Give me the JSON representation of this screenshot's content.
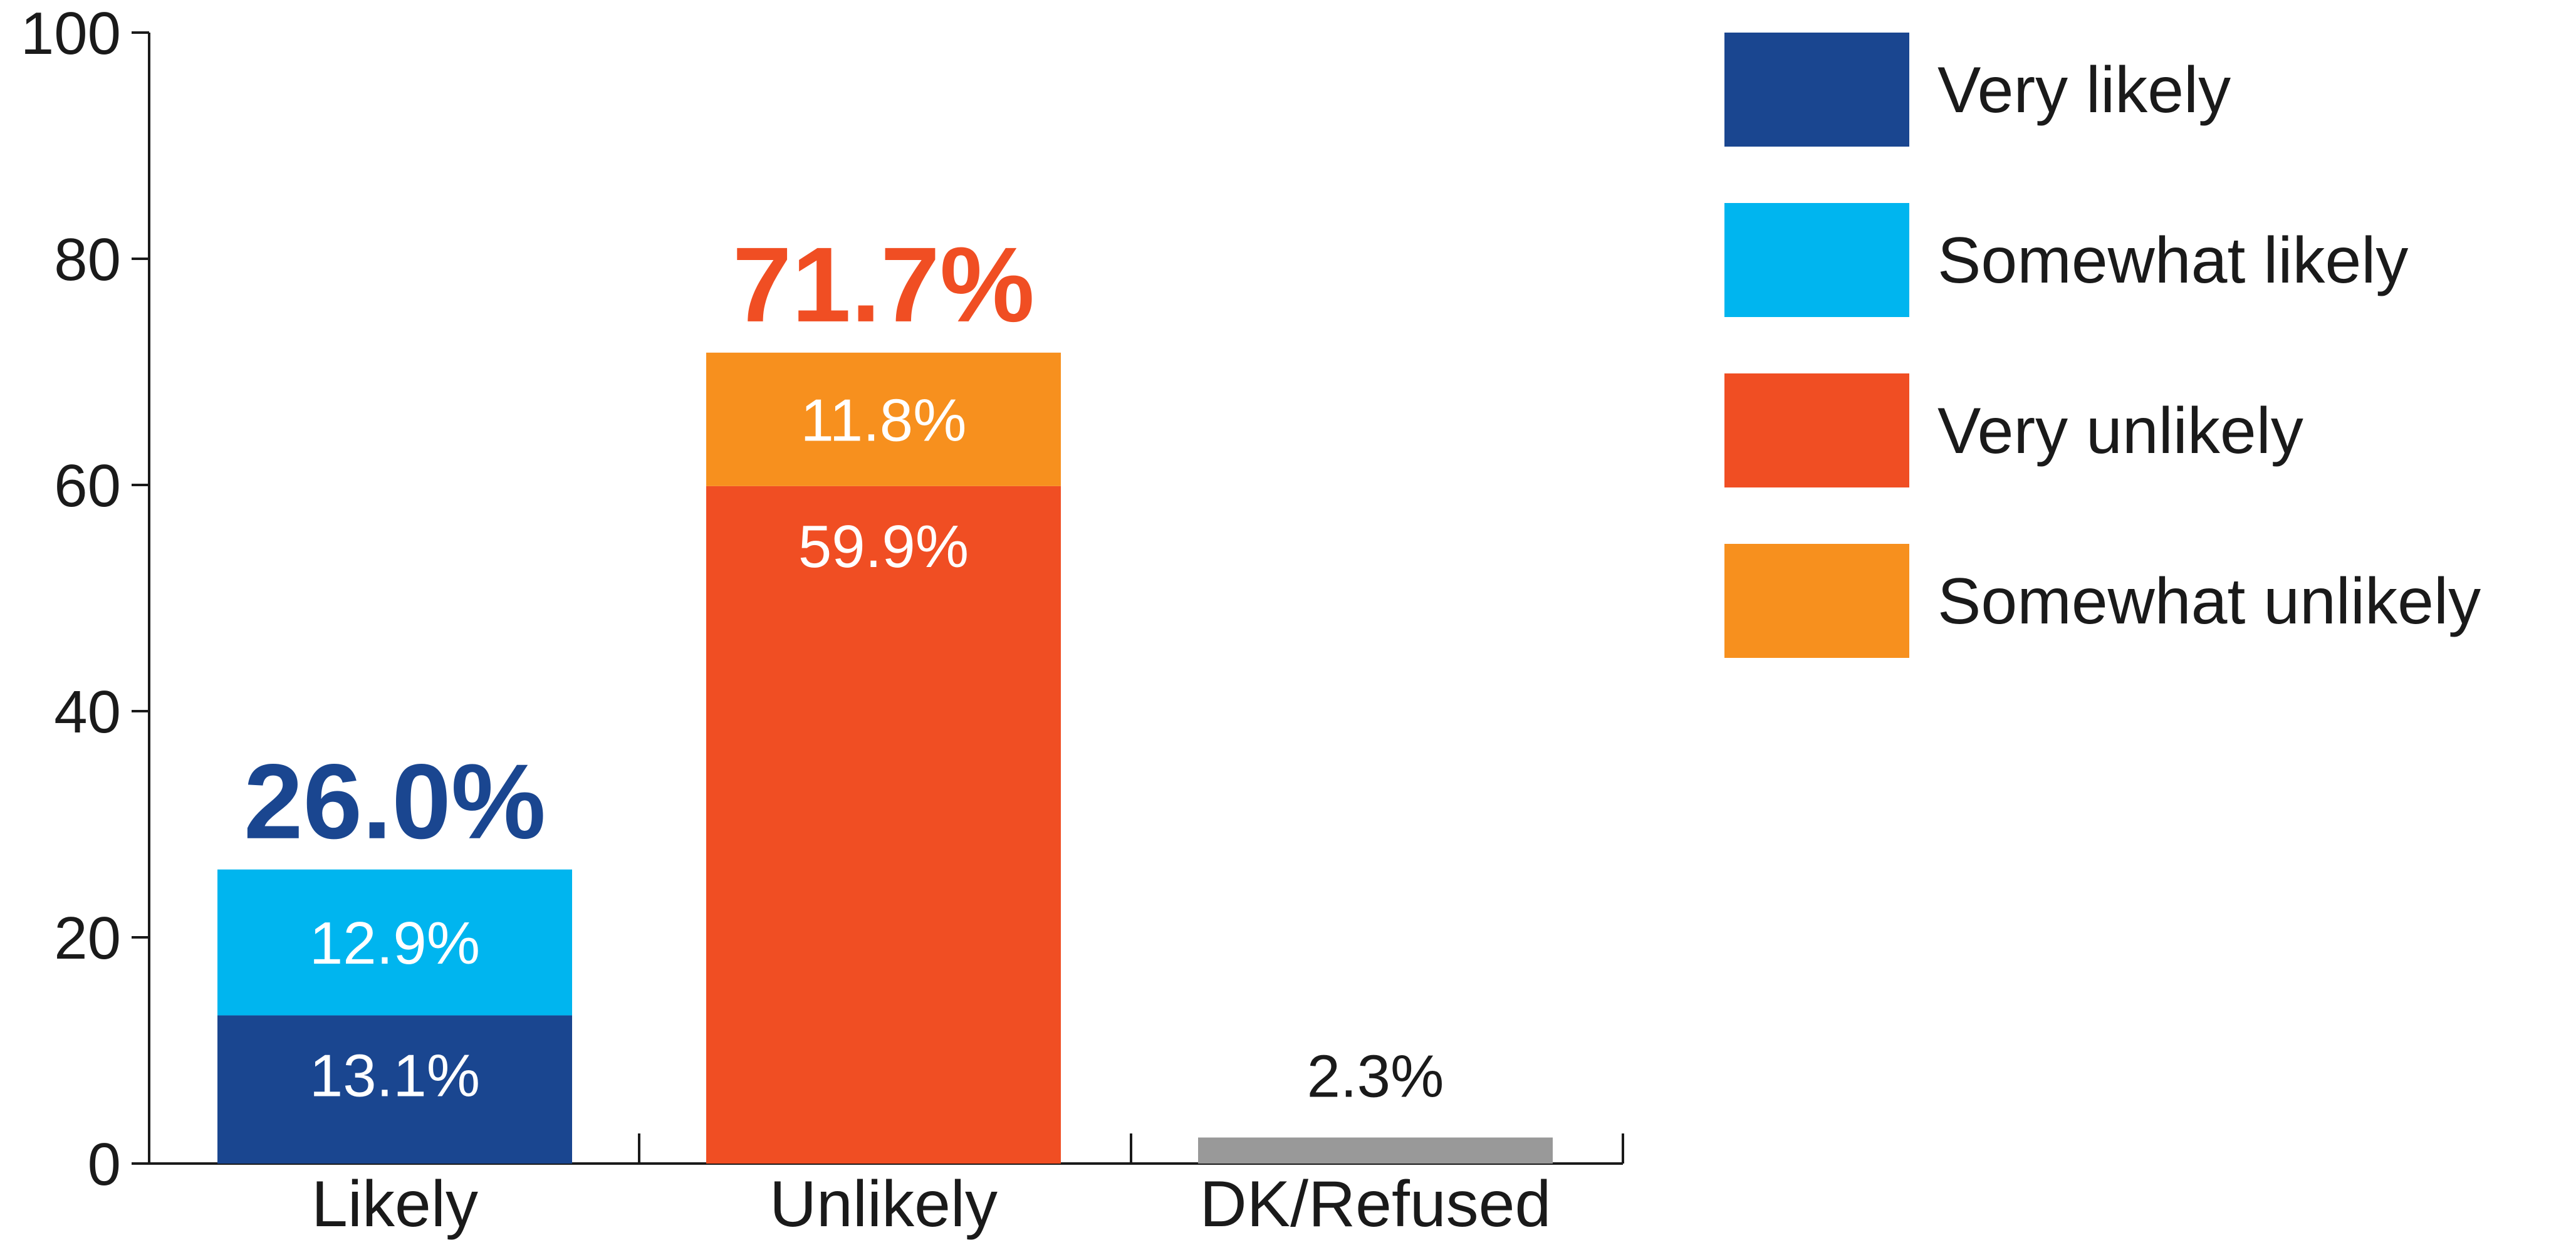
{
  "chart_data": {
    "type": "bar",
    "stacked": true,
    "categories": [
      "Likely",
      "Unlikely",
      "DK/Refused"
    ],
    "ylim": [
      0,
      100
    ],
    "yticks": [
      0,
      20,
      40,
      60,
      80,
      100
    ],
    "grid": false,
    "legend_placement": "right",
    "series": [
      {
        "name": "Very likely",
        "color": "#1a4690",
        "values": [
          13.1,
          0,
          0
        ],
        "labels": [
          "13.1%",
          "",
          ""
        ]
      },
      {
        "name": "Somewhat likely",
        "color": "#00b5ef",
        "values": [
          12.9,
          0,
          0
        ],
        "labels": [
          "12.9%",
          "",
          ""
        ]
      },
      {
        "name": "Very unlikely",
        "color": "#f04e23",
        "values": [
          0,
          59.9,
          0
        ],
        "labels": [
          "",
          "59.9%",
          ""
        ]
      },
      {
        "name": "Somewhat unlikely",
        "color": "#f7901e",
        "values": [
          0,
          11.8,
          0
        ],
        "labels": [
          "",
          "11.8%",
          ""
        ]
      }
    ],
    "other": {
      "color": "#999999",
      "values": [
        0,
        0,
        2.3
      ]
    },
    "totals": [
      {
        "label": "26.0%",
        "value": 26.0,
        "color": "#1a4690",
        "bold": true
      },
      {
        "label": "71.7%",
        "value": 71.7,
        "color": "#f04e23",
        "bold": true
      },
      {
        "label": "2.3%",
        "value": 2.3,
        "color": "#1a1a1a",
        "bold": false
      }
    ]
  }
}
